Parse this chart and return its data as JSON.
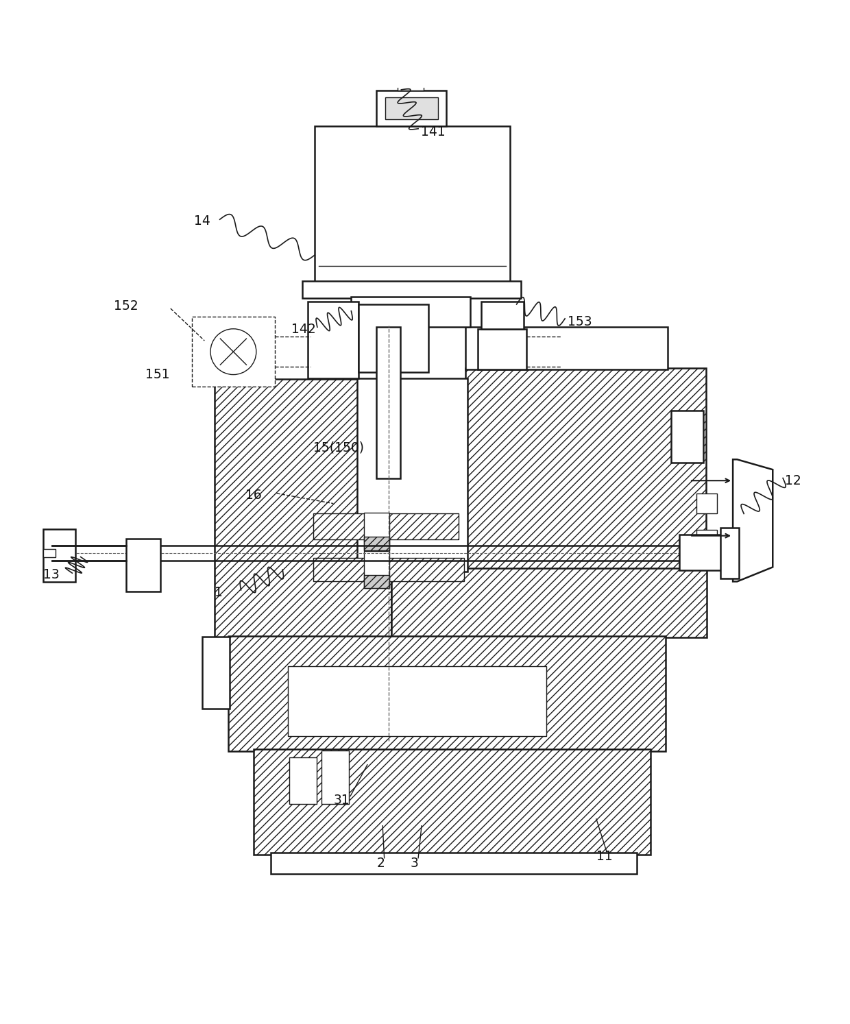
{
  "bg_color": "#ffffff",
  "line_color": "#1a1a1a",
  "figsize": [
    12.4,
    14.94
  ],
  "dpi": 100,
  "hatch": "///",
  "lw_main": 1.8,
  "lw_thin": 1.0,
  "label_fs": 13.5
}
